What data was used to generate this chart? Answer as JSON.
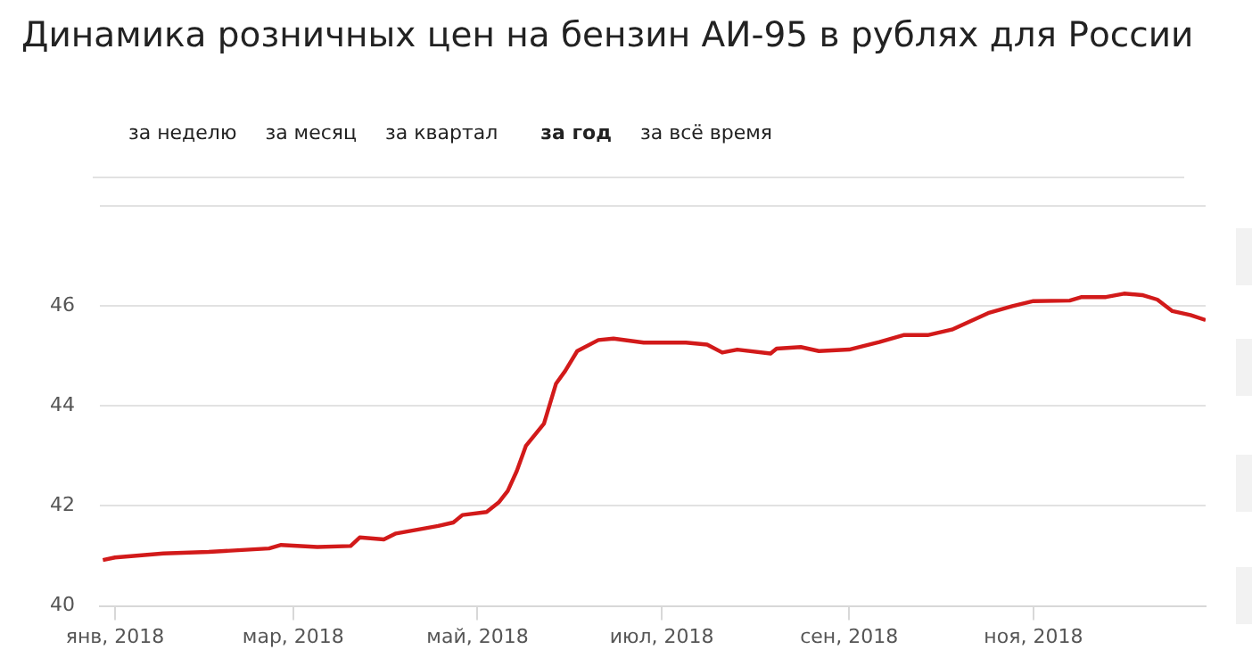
{
  "chart_data": {
    "type": "line",
    "title": "Динамика розничных цен на бензин АИ-95 в рублях для России",
    "annotations": [
      "за неделю",
      "за месяц",
      "за квартал",
      "за год",
      "за всё время"
    ],
    "x": [
      "2017-12-28",
      "2018-01-01",
      "2018-01-17",
      "2018-02-01",
      "2018-02-21",
      "2018-02-25",
      "2018-03-09",
      "2018-03-20",
      "2018-03-23",
      "2018-03-31",
      "2018-04-04",
      "2018-04-18",
      "2018-04-23",
      "2018-04-26",
      "2018-05-04",
      "2018-05-08",
      "2018-05-11",
      "2018-05-14",
      "2018-05-17",
      "2018-05-23",
      "2018-05-27",
      "2018-05-30",
      "2018-06-03",
      "2018-06-10",
      "2018-06-15",
      "2018-06-25",
      "2018-07-09",
      "2018-07-16",
      "2018-07-21",
      "2018-07-26",
      "2018-08-06",
      "2018-08-08",
      "2018-08-16",
      "2018-08-22",
      "2018-09-01",
      "2018-09-11",
      "2018-09-19",
      "2018-09-27",
      "2018-10-05",
      "2018-10-17",
      "2018-10-25",
      "2018-11-01",
      "2018-11-13",
      "2018-11-17",
      "2018-11-25",
      "2018-12-01",
      "2018-12-07",
      "2018-12-12",
      "2018-12-17",
      "2018-12-23",
      "2018-12-28"
    ],
    "series": [
      {
        "color": "#d21a1a",
        "values": [
          40.92,
          40.97,
          41.05,
          41.08,
          41.15,
          41.22,
          41.18,
          41.2,
          41.37,
          41.33,
          41.45,
          41.6,
          41.67,
          41.82,
          41.88,
          42.07,
          42.3,
          42.7,
          43.2,
          43.65,
          44.45,
          44.7,
          45.1,
          45.32,
          45.35,
          45.27,
          45.27,
          45.23,
          45.07,
          45.13,
          45.05,
          45.15,
          45.18,
          45.1,
          45.13,
          45.28,
          45.42,
          45.42,
          45.53,
          45.86,
          46.0,
          46.1,
          46.11,
          46.18,
          46.18,
          46.25,
          46.22,
          46.13,
          45.9,
          45.82,
          45.72
        ]
      }
    ],
    "xlim": [
      "2017-12-27",
      "2018-12-28"
    ],
    "xticks": [
      {
        "value": "2018-01-01",
        "label": "янв, 2018"
      },
      {
        "value": "2018-03-01",
        "label": "мар, 2018"
      },
      {
        "value": "2018-05-01",
        "label": "май, 2018"
      },
      {
        "value": "2018-07-01",
        "label": "июл, 2018"
      },
      {
        "value": "2018-09-01",
        "label": "сен, 2018"
      },
      {
        "value": "2018-11-01",
        "label": "ноя, 2018"
      }
    ],
    "ylim": [
      40,
      48
    ],
    "yticks": [
      40,
      42,
      44,
      46,
      {
        "value": 48,
        "label": null
      }
    ],
    "grid": "y",
    "legend": false,
    "marker": "none",
    "line_style": "solid"
  }
}
